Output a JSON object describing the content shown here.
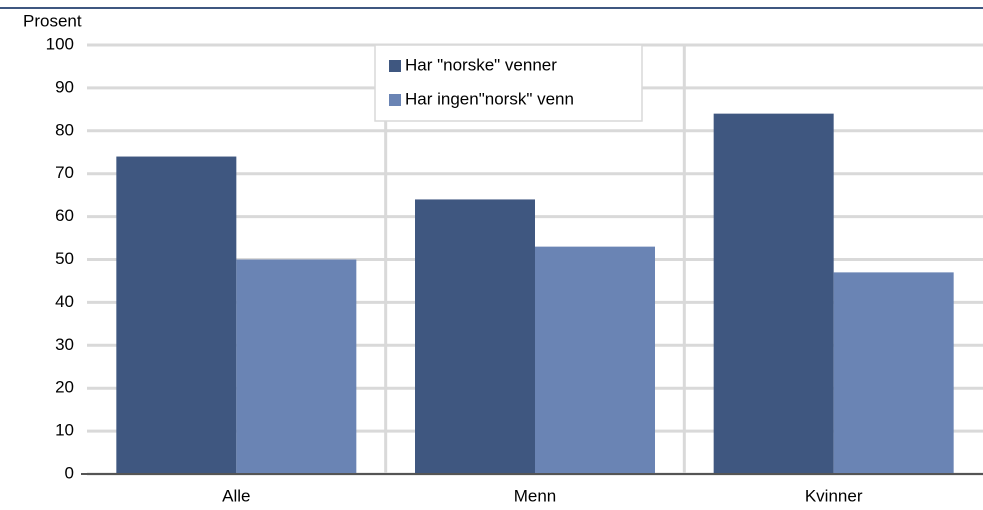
{
  "chart_data": {
    "type": "bar",
    "ylabel": "Prosent",
    "categories": [
      "Alle",
      "Menn",
      "Kvinner"
    ],
    "series": [
      {
        "name": "Har \"norske\" venner",
        "color": "#3f5780",
        "values": [
          74,
          64,
          84
        ]
      },
      {
        "name": "Har ingen\"norsk\" venn",
        "color": "#6a84b4",
        "values": [
          50,
          53,
          47
        ]
      }
    ],
    "ylim": [
      0,
      100
    ],
    "yticks": [
      0,
      10,
      20,
      30,
      40,
      50,
      60,
      70,
      80,
      90,
      100
    ],
    "grid": true,
    "legend": "top"
  }
}
